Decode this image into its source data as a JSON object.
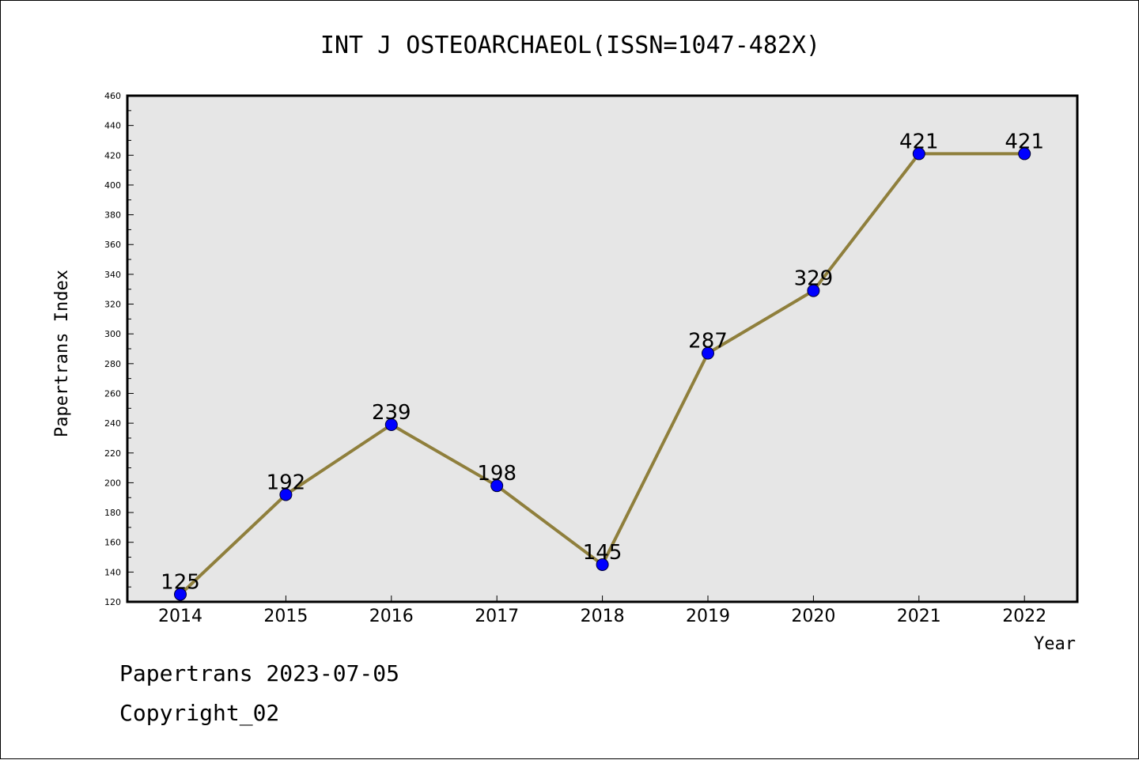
{
  "chart_data": {
    "type": "line",
    "title": "INT J OSTEOARCHAEOL(ISSN=1047-482X)",
    "xlabel": "Year",
    "ylabel": "Papertrans Index",
    "categories": [
      "2014",
      "2015",
      "2016",
      "2017",
      "2018",
      "2019",
      "2020",
      "2021",
      "2022"
    ],
    "values": [
      125,
      192,
      239,
      198,
      145,
      287,
      329,
      421,
      421
    ],
    "ylim": [
      120,
      460
    ],
    "yticks": [
      120,
      140,
      160,
      180,
      200,
      220,
      240,
      260,
      280,
      300,
      320,
      340,
      360,
      380,
      400,
      420,
      440,
      460
    ],
    "grid": false,
    "colors": {
      "line": "#8f7f3c",
      "marker": "#0000ff",
      "plot_bg": "#e6e6e6"
    }
  },
  "footer": {
    "date_line": "Papertrans 2023-07-05",
    "copyright": "Copyright_02"
  }
}
